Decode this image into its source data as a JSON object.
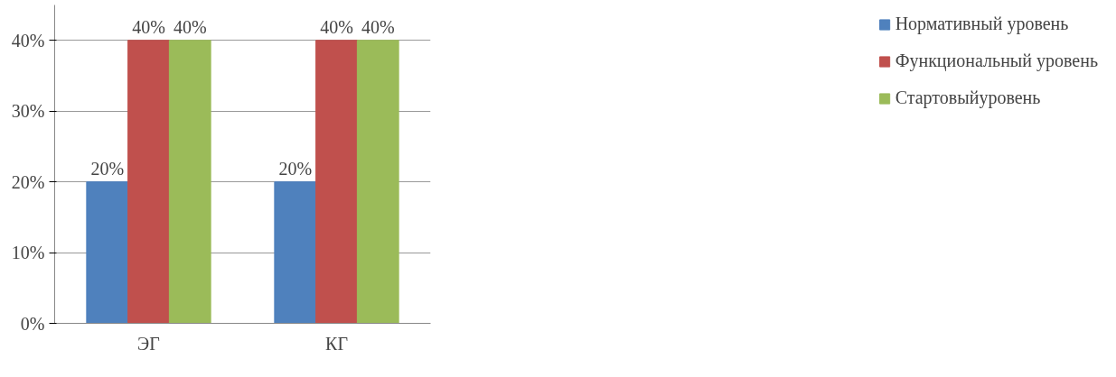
{
  "chart_data": {
    "type": "bar",
    "categories": [
      "ЭГ",
      "КГ"
    ],
    "series": [
      {
        "name": "Нормативный уровень",
        "color": "#4f81bd",
        "values": [
          20,
          20
        ],
        "value_labels": [
          "20%",
          "20%"
        ]
      },
      {
        "name": "Функциональный уровень",
        "color": "#c0504d",
        "values": [
          40,
          40
        ],
        "value_labels": [
          "40%",
          "40%"
        ]
      },
      {
        "name": "Стартовыйуровень",
        "color": "#9bbb59",
        "values": [
          40,
          40
        ],
        "value_labels": [
          "40%",
          "40%"
        ]
      }
    ],
    "ylim": [
      0,
      45
    ],
    "yticks": [
      {
        "value": 0,
        "label": "0%"
      },
      {
        "value": 10,
        "label": "10%"
      },
      {
        "value": 20,
        "label": "20%"
      },
      {
        "value": 30,
        "label": "30%"
      },
      {
        "value": 40,
        "label": "40%"
      }
    ],
    "grid": "y",
    "legend": "right"
  }
}
